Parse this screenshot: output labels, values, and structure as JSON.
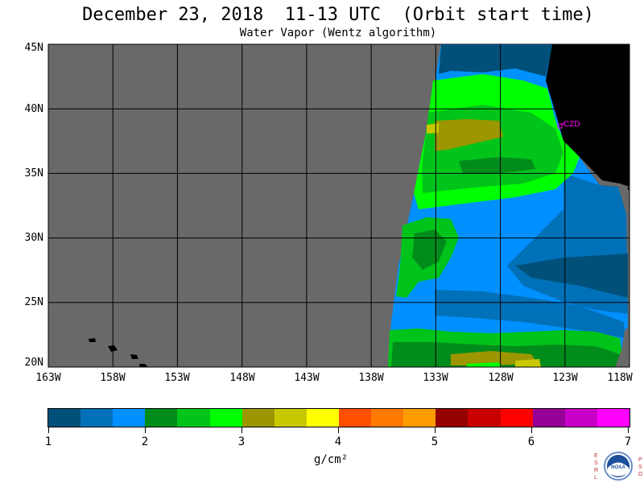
{
  "title": "December 23, 2018  11-13 UTC  (Orbit start time)",
  "subtitle": "Water Vapor (Wentz algorithm)",
  "map": {
    "lat_labels": [
      "45N",
      "40N",
      "35N",
      "30N",
      "25N",
      "20N"
    ],
    "lon_labels": [
      "163W",
      "158W",
      "153W",
      "148W",
      "143W",
      "138W",
      "133W",
      "128W",
      "123W",
      "118W"
    ],
    "lat_range": [
      20,
      45
    ],
    "lon_range": [
      -163,
      -118
    ],
    "station_label": "CZD",
    "colors": {
      "no_data": "#696969",
      "land": "#000000",
      "grid": "#000000",
      "station": "#ff00ff"
    }
  },
  "colorbar": {
    "ticks": [
      "1",
      "2",
      "3",
      "4",
      "5",
      "6",
      "7"
    ],
    "units_label": "g/cm²",
    "colors": [
      "#00507a",
      "#0070b8",
      "#0090ff",
      "#008c1a",
      "#00c41a",
      "#00ff00",
      "#9c9600",
      "#c8c800",
      "#ffff00",
      "#ff5000",
      "#ff7800",
      "#ff9c00",
      "#960000",
      "#c80000",
      "#ff0000",
      "#960096",
      "#c800c8",
      "#ff00ff"
    ]
  },
  "logo": {
    "left_letters": "ESRL",
    "right_letters": "PSD",
    "center_text": "NOAA"
  }
}
